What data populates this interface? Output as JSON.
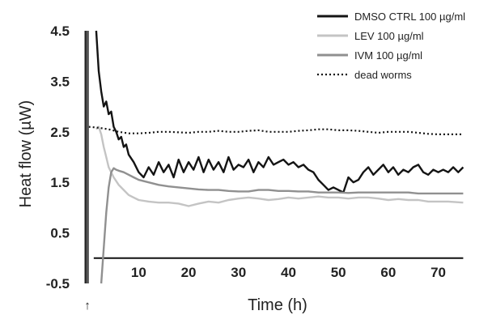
{
  "chart_data": {
    "type": "line",
    "title": "",
    "xlabel": "Time (h)",
    "ylabel": "Heat flow (µW)",
    "xlim": [
      -1,
      76
    ],
    "ylim": [
      -0.5,
      4.5
    ],
    "x_ticks": [
      "10",
      "20",
      "30",
      "40",
      "50",
      "60",
      "70"
    ],
    "y_ticks": [
      "4.5",
      "3.5",
      "2.5",
      "1.5",
      "0.5",
      "-0.5"
    ],
    "legend_position": "top-right",
    "injection_marker": "↑",
    "series": [
      {
        "name": "DMSO CTRL 100 µg/ml",
        "color": "#141414",
        "style": "solid",
        "x": [
          1.5,
          2,
          2.5,
          3,
          3.5,
          4,
          4.5,
          5,
          5.5,
          6,
          6.5,
          7,
          7.5,
          8,
          9,
          10,
          11,
          12,
          13,
          14,
          15,
          16,
          17,
          18,
          19,
          20,
          21,
          22,
          23,
          24,
          25,
          26,
          27,
          28,
          29,
          30,
          31,
          32,
          33,
          34,
          35,
          36,
          37,
          38,
          39,
          40,
          41,
          42,
          43,
          44,
          45,
          46,
          47,
          48,
          49,
          50,
          51,
          52,
          53,
          54,
          55,
          56,
          57,
          58,
          59,
          60,
          61,
          62,
          63,
          64,
          65,
          66,
          67,
          68,
          69,
          70,
          71,
          72,
          73,
          74,
          75
        ],
        "y": [
          4.5,
          3.7,
          3.3,
          3.0,
          3.1,
          2.85,
          2.9,
          2.6,
          2.5,
          2.35,
          2.4,
          2.2,
          2.25,
          2.05,
          1.9,
          1.7,
          1.6,
          1.8,
          1.65,
          1.9,
          1.7,
          1.85,
          1.6,
          1.95,
          1.7,
          1.9,
          1.75,
          2.0,
          1.7,
          1.95,
          1.75,
          1.9,
          1.7,
          2.0,
          1.75,
          1.85,
          1.8,
          1.95,
          1.7,
          1.9,
          1.8,
          2.0,
          1.85,
          1.9,
          1.95,
          1.85,
          1.9,
          1.8,
          1.85,
          1.75,
          1.7,
          1.55,
          1.45,
          1.35,
          1.4,
          1.35,
          1.3,
          1.6,
          1.5,
          1.55,
          1.7,
          1.8,
          1.65,
          1.75,
          1.85,
          1.7,
          1.8,
          1.65,
          1.75,
          1.7,
          1.8,
          1.85,
          1.7,
          1.65,
          1.75,
          1.7,
          1.75,
          1.7,
          1.8,
          1.7,
          1.8
        ]
      },
      {
        "name": "LEV 100 µg/ml",
        "color": "#c4c4c4",
        "style": "solid",
        "x": [
          1.5,
          2,
          2.5,
          3,
          3.5,
          4,
          5,
          6,
          7,
          8,
          9,
          10,
          12,
          14,
          16,
          18,
          20,
          22,
          24,
          26,
          28,
          30,
          32,
          34,
          36,
          38,
          40,
          42,
          44,
          46,
          48,
          50,
          52,
          54,
          56,
          58,
          60,
          62,
          64,
          66,
          68,
          70,
          72,
          75
        ],
        "y": [
          2.55,
          2.6,
          2.45,
          2.2,
          2.0,
          1.8,
          1.6,
          1.45,
          1.35,
          1.25,
          1.2,
          1.15,
          1.12,
          1.1,
          1.1,
          1.08,
          1.03,
          1.08,
          1.12,
          1.1,
          1.15,
          1.18,
          1.2,
          1.18,
          1.15,
          1.17,
          1.2,
          1.18,
          1.2,
          1.22,
          1.2,
          1.2,
          1.18,
          1.2,
          1.2,
          1.18,
          1.15,
          1.17,
          1.15,
          1.15,
          1.12,
          1.12,
          1.12,
          1.1
        ]
      },
      {
        "name": "IVM 100 µg/ml",
        "color": "#909090",
        "style": "solid",
        "x": [
          2.5,
          3,
          3.5,
          4,
          4.5,
          5,
          5.5,
          6,
          7,
          8,
          9,
          10,
          12,
          14,
          16,
          18,
          20,
          22,
          24,
          26,
          28,
          30,
          32,
          34,
          36,
          38,
          40,
          42,
          44,
          46,
          48,
          50,
          52,
          54,
          56,
          58,
          60,
          62,
          64,
          66,
          68,
          70,
          72,
          75
        ],
        "y": [
          -0.5,
          0.2,
          0.9,
          1.4,
          1.7,
          1.78,
          1.75,
          1.73,
          1.7,
          1.65,
          1.6,
          1.55,
          1.5,
          1.45,
          1.42,
          1.4,
          1.38,
          1.36,
          1.35,
          1.35,
          1.33,
          1.32,
          1.32,
          1.35,
          1.35,
          1.33,
          1.33,
          1.32,
          1.32,
          1.3,
          1.3,
          1.3,
          1.29,
          1.3,
          1.3,
          1.3,
          1.3,
          1.3,
          1.3,
          1.28,
          1.28,
          1.28,
          1.28,
          1.28
        ]
      },
      {
        "name": "dead worms",
        "color": "#141414",
        "style": "dotted",
        "x": [
          0,
          2,
          4,
          6,
          8,
          10,
          12,
          14,
          16,
          18,
          20,
          22,
          24,
          26,
          28,
          30,
          32,
          34,
          36,
          38,
          40,
          42,
          44,
          46,
          48,
          50,
          52,
          54,
          56,
          58,
          60,
          62,
          64,
          66,
          68,
          70,
          72,
          75
        ],
        "y": [
          2.6,
          2.58,
          2.55,
          2.5,
          2.47,
          2.47,
          2.48,
          2.5,
          2.5,
          2.49,
          2.48,
          2.5,
          2.5,
          2.52,
          2.5,
          2.5,
          2.52,
          2.53,
          2.5,
          2.5,
          2.5,
          2.52,
          2.53,
          2.55,
          2.55,
          2.53,
          2.53,
          2.52,
          2.5,
          2.48,
          2.5,
          2.5,
          2.5,
          2.48,
          2.46,
          2.45,
          2.45,
          2.45
        ]
      }
    ]
  }
}
